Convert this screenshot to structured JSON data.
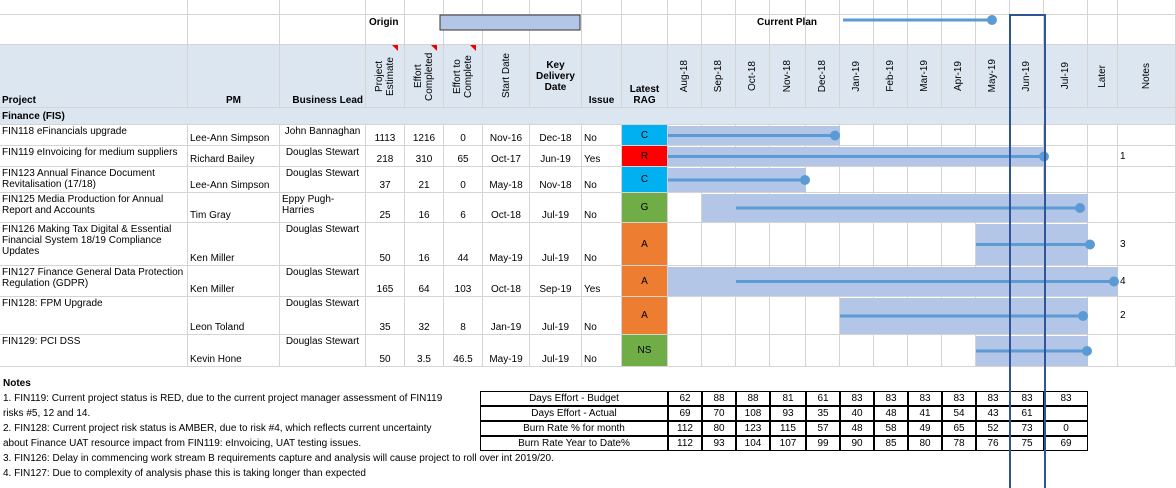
{
  "legend": {
    "origin": "Origin",
    "current_plan": "Current Plan"
  },
  "headers": {
    "project": "Project",
    "pm": "PM",
    "business_lead": "Business Lead",
    "project_estimate": "Project Estimate",
    "effort_completed": "Effort Completed",
    "effort_to_complete": "Effort to Complete",
    "start_date": "Start Date",
    "key_delivery_date": "Key Delivery Date",
    "issue": "Issue",
    "latest_rag": "Latest RAG",
    "months": [
      "Aug-18",
      "Sep-18",
      "Oct-18",
      "Nov-18",
      "Dec-18",
      "Jan-19",
      "Feb-19",
      "Mar-19",
      "Apr-19",
      "May-19",
      "Jun-19",
      "Jul-19"
    ],
    "later": "Later",
    "notes": "Notes"
  },
  "section": "Finance (FIS)",
  "rows": [
    {
      "project": "FIN118 eFinancials upgrade",
      "pm": "Lee-Ann Simpson",
      "business_lead": "John Bannaghan",
      "estimate": 1113,
      "completed": 1216,
      "to_complete": 0,
      "start": "Nov-16",
      "delivery": "Dec-18",
      "issue": "No",
      "rag": "C",
      "rag_color": "#00b0f0",
      "note": null
    },
    {
      "project": "FIN119 eInvoicing for medium suppliers",
      "pm": "Richard Bailey",
      "business_lead": "Douglas Stewart",
      "estimate": 218,
      "completed": 310,
      "to_complete": 65,
      "start": "Oct-17",
      "delivery": "Jun-19",
      "issue": "Yes",
      "rag": "R",
      "rag_color": "#ff0000",
      "note": "1"
    },
    {
      "project": "FIN123 Annual Finance Document Revitalisation (17/18)",
      "pm": "Lee-Ann Simpson",
      "business_lead": "Douglas Stewart",
      "estimate": 37,
      "completed": 21,
      "to_complete": 0,
      "start": "May-18",
      "delivery": "Nov-18",
      "issue": "No",
      "rag": "C",
      "rag_color": "#00b0f0",
      "note": null
    },
    {
      "project": "FIN125 Media Production for Annual Report and Accounts",
      "pm": "Tim Gray",
      "business_lead": "Eppy Pugh-Harries",
      "estimate": 25,
      "completed": 16,
      "to_complete": 6,
      "start": "Oct-18",
      "delivery": "Jul-19",
      "issue": "No",
      "rag": "G",
      "rag_color": "#70ad47",
      "note": null
    },
    {
      "project": "FIN126 Making Tax Digital & Essential Financial System 18/19 Compliance Updates",
      "pm": "Ken Miller",
      "business_lead": "Douglas Stewart",
      "estimate": 50,
      "completed": 16,
      "to_complete": 44,
      "start": "May-19",
      "delivery": "Jul-19",
      "issue": "No",
      "rag": "A",
      "rag_color": "#ed7d31",
      "note": "3"
    },
    {
      "project": "FIN127 Finance General Data Protection Regulation (GDPR)",
      "pm": "Ken Miller",
      "business_lead": "Douglas Stewart",
      "estimate": 165,
      "completed": 64,
      "to_complete": 103,
      "start": "Oct-18",
      "delivery": "Sep-19",
      "issue": "Yes",
      "rag": "A",
      "rag_color": "#ed7d31",
      "note": "4"
    },
    {
      "project": "FIN128: FPM Upgrade",
      "pm": "Leon Toland",
      "business_lead": "Douglas Stewart",
      "estimate": 35,
      "completed": 32,
      "to_complete": 8,
      "start": "Jan-19",
      "delivery": "Jul-19",
      "issue": "No",
      "rag": "A",
      "rag_color": "#ed7d31",
      "note": "2"
    },
    {
      "project": "FIN129: PCI DSS",
      "pm": "Kevin Hone",
      "business_lead": "Douglas Stewart",
      "estimate": 50,
      "completed": 3.5,
      "to_complete": 46.5,
      "start": "May-19",
      "delivery": "Jul-19",
      "issue": "No",
      "rag": "NS",
      "rag_color": "#70ad47",
      "note": null
    }
  ],
  "notes": {
    "title": "Notes",
    "lines": [
      "1. FIN119: Current project status is RED, due to the current project manager assessment of FIN119",
      "risks #5, 12 and 14.",
      "2. FIN128: Current project risk status is AMBER, due to risk #4, which reflects current uncertainty",
      "about Finance UAT resource impact from FIN119: eInvoicing, UAT testing issues.",
      "3. FIN126: Delay in commencing work stream B requirements capture and analysis will cause project to roll over int 2019/20.",
      "4. FIN127: Due to complexity of analysis phase this is taking longer than expected"
    ]
  },
  "burn": [
    {
      "label": "Days Effort - Budget",
      "values": [
        62,
        88,
        88,
        81,
        61,
        83,
        83,
        83,
        83,
        83,
        83,
        83
      ]
    },
    {
      "label": "Days Effort - Actual",
      "values": [
        69,
        70,
        108,
        93,
        35,
        40,
        48,
        41,
        54,
        43,
        61,
        null
      ]
    },
    {
      "label": "Burn Rate % for month",
      "values": [
        112,
        80,
        123,
        115,
        57,
        48,
        58,
        49,
        65,
        52,
        73,
        0
      ]
    },
    {
      "label": "Burn Rate Year to Date%",
      "values": [
        112,
        93,
        104,
        107,
        99,
        90,
        85,
        80,
        78,
        76,
        75,
        69
      ]
    }
  ]
}
